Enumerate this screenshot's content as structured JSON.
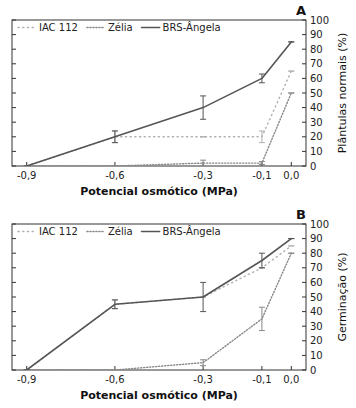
{
  "chart_data": [
    {
      "type": "line",
      "title": "A",
      "xlabel": "Potencial osmótico (MPa)",
      "ylabel": "Plântulas normais (%)",
      "x": [
        -0.9,
        -0.6,
        -0.3,
        -0.1,
        0.0
      ],
      "series": [
        {
          "name": "IAC 112",
          "color": "#b0b0b0",
          "line_style": "dotted",
          "values": [
            0,
            20,
            20,
            20,
            65
          ],
          "errors": [
            0,
            4,
            0,
            4,
            0
          ]
        },
        {
          "name": "Zélia",
          "color": "#888888",
          "line_style": "densely-dotted",
          "values": [
            0,
            0,
            2,
            2,
            50
          ],
          "errors": [
            0,
            0,
            2,
            1,
            0
          ]
        },
        {
          "name": "BRS-Ângela",
          "color": "#555555",
          "line_style": "solid",
          "values": [
            0,
            20,
            40,
            60,
            85
          ],
          "errors": [
            0,
            4,
            8,
            3,
            0
          ]
        }
      ],
      "xlim": [
        -0.95,
        0.05
      ],
      "xticks": [
        {
          "value": -0.9,
          "label": "-0,9"
        },
        {
          "value": -0.6,
          "label": "-0,6"
        },
        {
          "value": -0.3,
          "label": "-0,3"
        },
        {
          "value": -0.1,
          "label": "-0,1"
        },
        {
          "value": 0.0,
          "label": "0,0"
        }
      ],
      "ylim": [
        0,
        100
      ],
      "yticks": [
        0,
        10,
        20,
        30,
        40,
        50,
        60,
        70,
        80,
        90,
        100
      ],
      "legend": "upper left"
    },
    {
      "type": "line",
      "title": "B",
      "xlabel": "Potencial osmótico (MPa)",
      "ylabel": "Germinação (%)",
      "x": [
        -0.9,
        -0.6,
        -0.3,
        -0.1,
        0.0
      ],
      "series": [
        {
          "name": "IAC 112",
          "color": "#b0b0b0",
          "line_style": "dotted",
          "values": [
            0,
            45,
            50,
            70,
            85
          ],
          "errors": [
            0,
            3,
            0,
            0,
            0
          ]
        },
        {
          "name": "Zélia",
          "color": "#888888",
          "line_style": "densely-dotted",
          "values": [
            0,
            0,
            5,
            35,
            80
          ],
          "errors": [
            0,
            0,
            2,
            8,
            0
          ]
        },
        {
          "name": "BRS-Ângela",
          "color": "#555555",
          "line_style": "solid",
          "values": [
            0,
            45,
            50,
            75,
            90
          ],
          "errors": [
            0,
            3,
            10,
            5,
            0
          ]
        }
      ],
      "xlim": [
        -0.95,
        0.05
      ],
      "xticks": [
        {
          "value": -0.9,
          "label": "-0,9"
        },
        {
          "value": -0.6,
          "label": "-0,6"
        },
        {
          "value": -0.3,
          "label": "-0,3"
        },
        {
          "value": -0.1,
          "label": "-0,1"
        },
        {
          "value": 0.0,
          "label": "0,0"
        }
      ],
      "ylim": [
        0,
        100
      ],
      "yticks": [
        0,
        10,
        20,
        30,
        40,
        50,
        60,
        70,
        80,
        90,
        100
      ],
      "legend": "upper left"
    }
  ]
}
